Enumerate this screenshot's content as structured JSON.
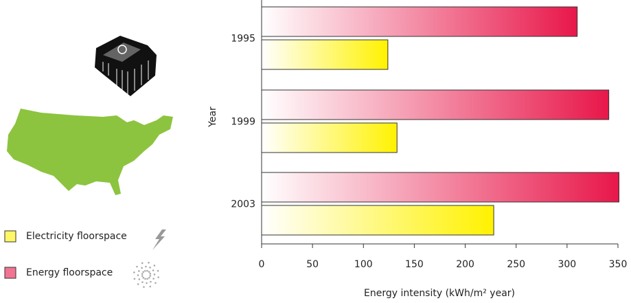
{
  "chart_data": {
    "type": "bar",
    "orientation": "horizontal",
    "x_label": "Energy intensity (kWh/m² year)",
    "y_label": "Year",
    "categories": [
      "1995",
      "1999",
      "2003"
    ],
    "series": [
      {
        "name": "Electricity floorspace",
        "color": "#fff200",
        "values": [
          124,
          133,
          228
        ]
      },
      {
        "name": "Energy floorspace",
        "color": "#e8174a",
        "values": [
          310,
          341,
          351
        ]
      }
    ],
    "xlim": [
      0,
      350
    ],
    "xticks": [
      0,
      50,
      100,
      150,
      200,
      250,
      300,
      350
    ]
  }
}
